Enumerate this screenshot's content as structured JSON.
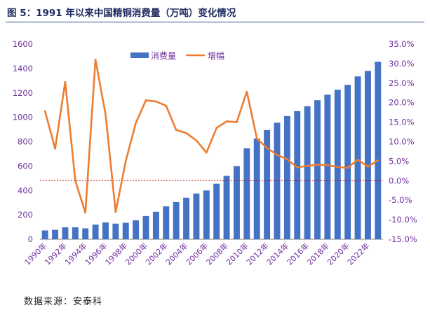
{
  "figure": {
    "title": "图 5：1991 年以来中国精铜消费量（万吨）变化情况",
    "source": "数据来源：安泰科"
  },
  "chart_data": {
    "type": "bar+line",
    "categories": [
      "1990",
      "1991",
      "1992",
      "1993",
      "1994",
      "1995",
      "1996",
      "1997",
      "1998",
      "1999",
      "2000",
      "2001",
      "2002",
      "2003",
      "2004",
      "2005",
      "2006",
      "2007",
      "2008",
      "2009",
      "2010",
      "2011",
      "2012",
      "2013",
      "2014",
      "2015",
      "2016",
      "2017",
      "2018",
      "2019",
      "2020",
      "2021",
      "2022",
      "2023"
    ],
    "x_tick_labels": [
      "1990年",
      "1992年",
      "1994年",
      "1996年",
      "1998年",
      "2000年",
      "2002年",
      "2004年",
      "2006年",
      "2008年",
      "2010年",
      "2012年",
      "2014年",
      "2016年",
      "2018年",
      "2020年",
      "2022年"
    ],
    "series": [
      {
        "name": "消费量",
        "type": "bar",
        "axis": "left",
        "color": "#4472c4",
        "values": [
          72,
          77,
          98,
          98,
          89,
          120,
          138,
          128,
          135,
          155,
          190,
          225,
          270,
          305,
          340,
          375,
          400,
          455,
          520,
          600,
          745,
          825,
          895,
          955,
          1010,
          1050,
          1090,
          1140,
          1185,
          1225,
          1265,
          1335,
          1380,
          1455
        ]
      },
      {
        "name": "增幅",
        "type": "line",
        "axis": "right",
        "color": "#ed7d31",
        "values": [
          17.8,
          8.2,
          25.3,
          0.0,
          -8.2,
          31.0,
          17.0,
          -8.0,
          5.0,
          14.8,
          20.6,
          20.3,
          19.2,
          13.0,
          12.2,
          10.3,
          7.2,
          13.5,
          15.2,
          15.0,
          22.8,
          10.8,
          8.4,
          6.6,
          5.5,
          3.4,
          3.8,
          4.1,
          4.0,
          3.5,
          3.3,
          5.4,
          3.6,
          5.2
        ]
      }
    ],
    "y_left": {
      "min": 0,
      "max": 1600,
      "step": 200,
      "ticks": [
        "0",
        "200",
        "400",
        "600",
        "800",
        "1000",
        "1200",
        "1400",
        "1600"
      ]
    },
    "y_right": {
      "min": -15,
      "max": 35,
      "step": 5,
      "ticks": [
        "-15.0%",
        "-10.0%",
        "-5.0%",
        "0.0%",
        "5.0%",
        "10.0%",
        "15.0%",
        "20.0%",
        "25.0%",
        "30.0%",
        "35.0%"
      ]
    },
    "zero_reference_line": {
      "value": 0,
      "color": "#c00000",
      "style": "dotted"
    },
    "legend": {
      "placement": "top-center"
    },
    "grid": false,
    "colors": {
      "axis_text": "#7030a0",
      "axis_line": "#7f7f7f"
    }
  }
}
